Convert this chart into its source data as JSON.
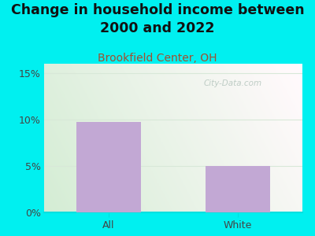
{
  "title": "Change in household income between\n2000 and 2022",
  "subtitle": "Brookfield Center, OH",
  "categories": [
    "All",
    "White"
  ],
  "values": [
    9.7,
    5.0
  ],
  "bar_color": "#c2a8d4",
  "outer_bg": "#00f0f0",
  "ylim": [
    0,
    16
  ],
  "yticks": [
    0,
    5,
    10,
    15
  ],
  "ytick_labels": [
    "0%",
    "5%",
    "10%",
    "15%"
  ],
  "title_fontsize": 12.5,
  "subtitle_fontsize": 10,
  "subtitle_color": "#a05030",
  "title_color": "#111111",
  "watermark": "City-Data.com",
  "watermark_color": "#b8c8c0",
  "grid_color": "#d8e8d8",
  "bottom_line_color": "#00e0e0",
  "tick_color": "#00e0e0"
}
